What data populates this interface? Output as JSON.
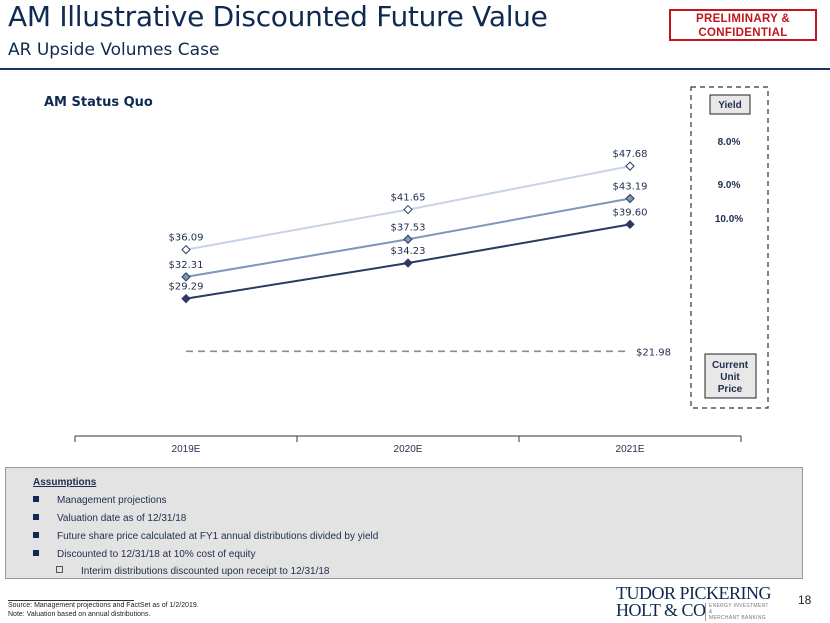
{
  "header": {
    "title": "AM Illustrative Discounted Future Value",
    "subtitle": "AR Upside Volumes Case",
    "badge_line1": "PRELIMINARY &",
    "badge_line2": "CONFIDENTIAL"
  },
  "section_label": "AM Status Quo",
  "chart_data": {
    "type": "line",
    "categories": [
      "2019E",
      "2020E",
      "2021E"
    ],
    "series": [
      {
        "name": "8.0%",
        "values": [
          36.09,
          41.65,
          47.68
        ],
        "labels": [
          "$36.09",
          "$41.65",
          "$47.68"
        ],
        "color": "#c8d3e6"
      },
      {
        "name": "9.0%",
        "values": [
          32.31,
          37.53,
          43.19
        ],
        "labels": [
          "$32.31",
          "$37.53",
          "$43.19"
        ],
        "color": "#7f96bd"
      },
      {
        "name": "10.0%",
        "values": [
          29.29,
          34.23,
          39.6
        ],
        "labels": [
          "$29.29",
          "$34.23",
          "$39.60"
        ],
        "color": "#2a3a62"
      }
    ],
    "reference_line": {
      "value": 21.98,
      "label": "$21.98",
      "color": "#8c8c8c",
      "style": "dashed"
    },
    "legend_box": {
      "header": "Yield",
      "footer_lines": [
        "Current",
        "Unit",
        "Price"
      ]
    },
    "ylim": [
      18,
      52
    ],
    "grid": false,
    "legend_position": "right"
  },
  "assumptions": {
    "title": "Assumptions",
    "items": [
      "Management projections",
      "Valuation date as of 12/31/18",
      "Future share price calculated at FY1 annual distributions divided by yield",
      "Discounted to 12/31/18 at 10% cost of equity"
    ],
    "sub_items": [
      "Interim distributions discounted upon receipt to 12/31/18"
    ]
  },
  "footnotes": {
    "source": "Source: Management projections and FactSet as of 1/2/2019.",
    "note": "Note: Valuation based on annual distributions."
  },
  "page_number": "18",
  "logo": {
    "line1": "TUDOR PICKERING",
    "line2": "HOLT & CO",
    "tagline1": "ENERGY INVESTMENT &",
    "tagline2": "MERCHANT BANKING"
  }
}
